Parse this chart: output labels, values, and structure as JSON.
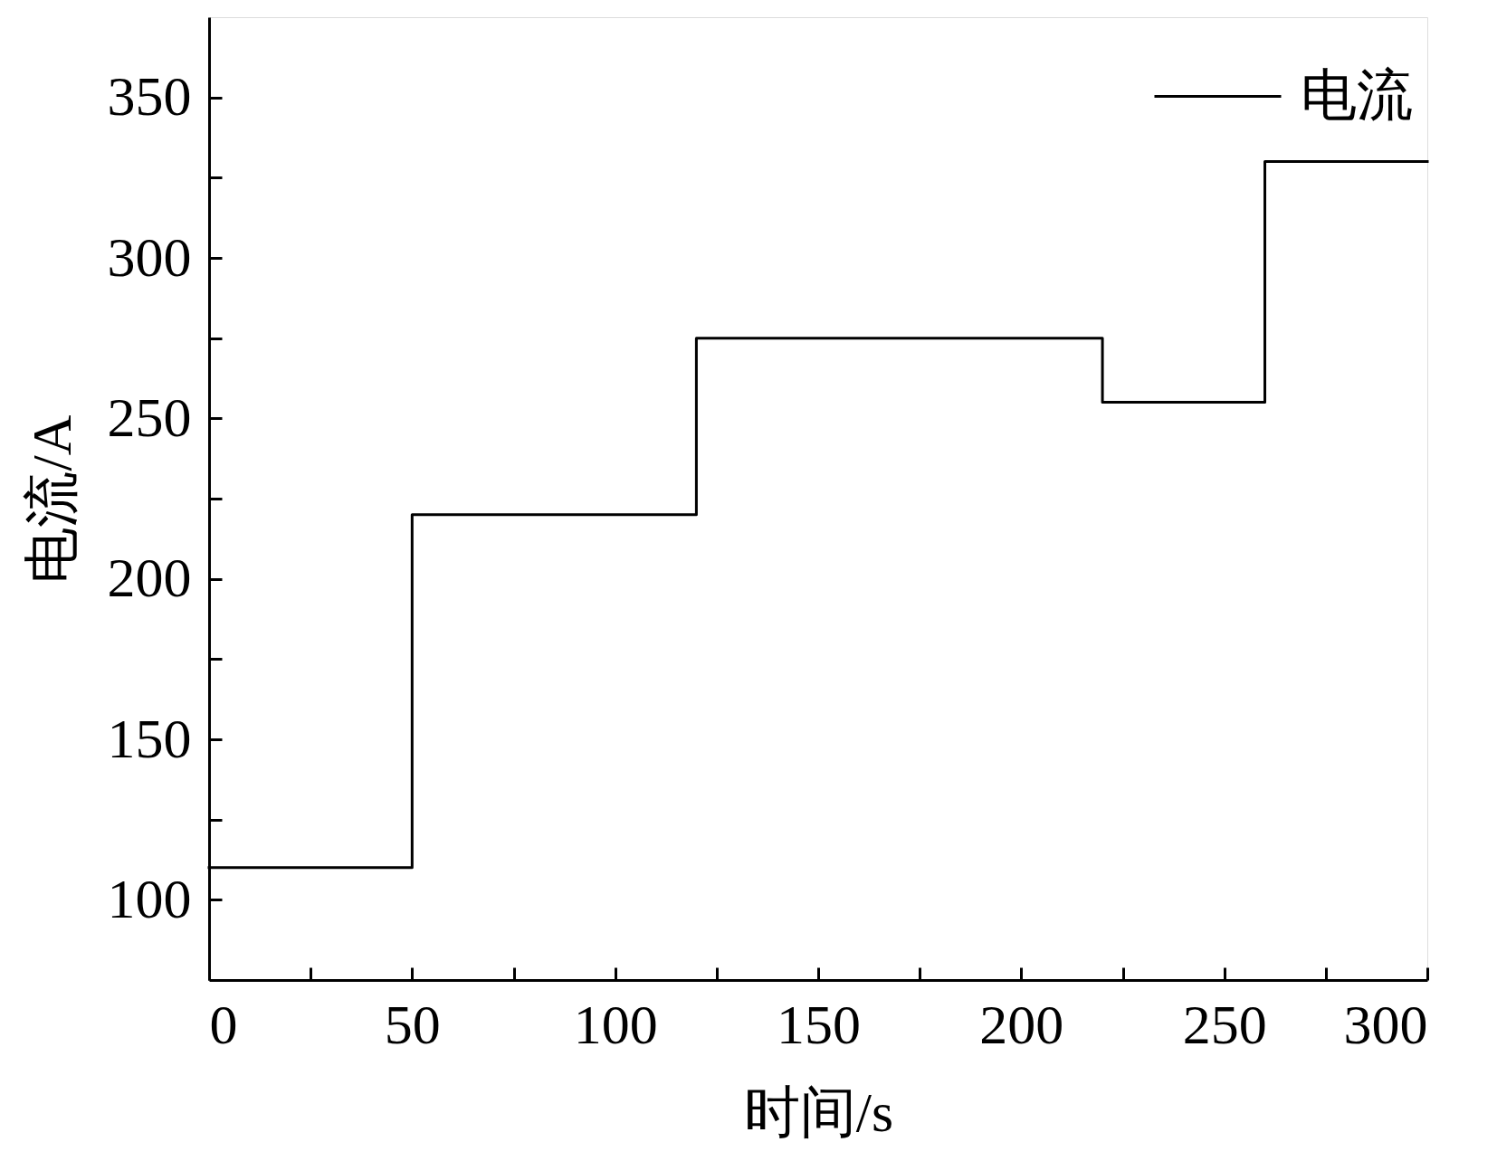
{
  "chart_data": {
    "type": "step",
    "xlabel": "时间/s",
    "ylabel": "电流/A",
    "x": [
      0,
      50,
      120,
      220,
      260,
      300
    ],
    "series": [
      {
        "name": "电流",
        "color": "#000000",
        "values": [
          110,
          220,
          275,
          255,
          330,
          330
        ]
      }
    ],
    "xlim": [
      0,
      300
    ],
    "ylim": [
      75,
      375
    ],
    "xticks": [
      0,
      {
        "value": 25,
        "label": null
      },
      50,
      {
        "value": 75,
        "label": null
      },
      100,
      {
        "value": 125,
        "label": null
      },
      150,
      {
        "value": 175,
        "label": null
      },
      200,
      {
        "value": 225,
        "label": null
      },
      250,
      {
        "value": 275,
        "label": null
      },
      300
    ],
    "yticks": [
      100,
      {
        "value": 125,
        "label": null
      },
      150,
      {
        "value": 175,
        "label": null
      },
      200,
      {
        "value": 225,
        "label": null
      },
      250,
      {
        "value": 275,
        "label": null
      },
      300,
      {
        "value": 325,
        "label": null
      },
      350
    ],
    "legend": "top right"
  }
}
